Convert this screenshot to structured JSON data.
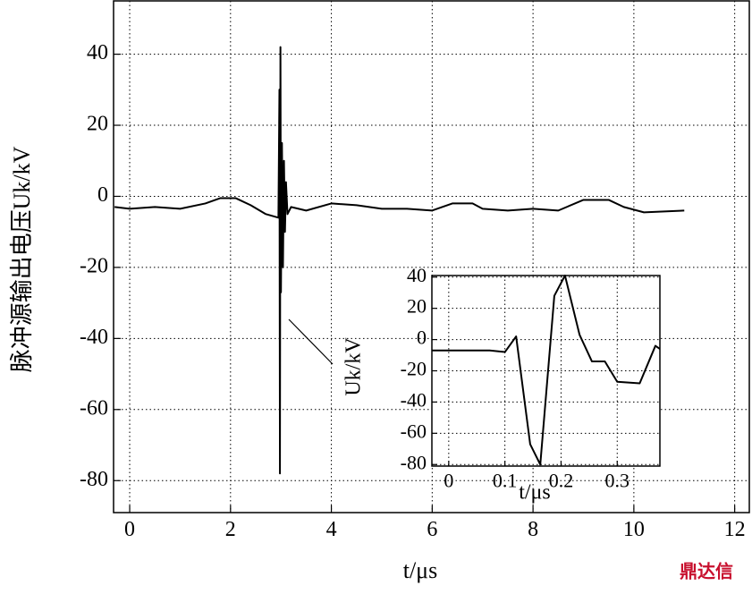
{
  "chart_data": [
    {
      "type": "line",
      "x_label": "t/μs",
      "y_label": "脉冲源输出电压Uk/kV",
      "x": [
        -0.3,
        0,
        0.5,
        1,
        1.5,
        1.8,
        2.1,
        2.4,
        2.7,
        2.95,
        2.97,
        2.98,
        2.99,
        3.0,
        3.02,
        3.04,
        3.06,
        3.08,
        3.1,
        3.13,
        3.2,
        3.5,
        4.0,
        4.5,
        5.0,
        5.5,
        6.0,
        6.4,
        6.8,
        7.0,
        7.5,
        8.0,
        8.5,
        9.0,
        9.5,
        9.8,
        10.2,
        11
      ],
      "series": [
        {
          "color": "#000000",
          "values": [
            -3,
            -3.5,
            -3,
            -3.5,
            -2,
            -0.5,
            -0.5,
            -2.5,
            -5,
            -6,
            30,
            -78,
            42,
            -27,
            15,
            -20,
            10,
            -10,
            4,
            -5,
            -3,
            -4,
            -2,
            -2.5,
            -3.5,
            -3.5,
            -4,
            -2,
            -2,
            -3.5,
            -4,
            -3.5,
            -4,
            -1,
            -1,
            -3,
            -4.5,
            -4
          ]
        }
      ],
      "xlim": [
        -0.32,
        12.29
      ],
      "ylim": [
        -89,
        55
      ],
      "xticks": [
        0,
        2,
        4,
        6,
        8,
        10,
        12
      ],
      "yticks": [
        -80,
        -60,
        -40,
        -20,
        0,
        20,
        40
      ],
      "grid": true
    },
    {
      "type": "line",
      "x_label": "t/μs",
      "y_label": "Uk/kV",
      "x": [
        -0.03,
        0.06,
        0.073,
        0.1,
        0.12,
        0.145,
        0.163,
        0.188,
        0.207,
        0.233,
        0.255,
        0.278,
        0.3,
        0.34,
        0.368,
        0.376
      ],
      "series": [
        {
          "color": "#000000",
          "values": [
            -7,
            -7,
            -7,
            -8,
            2,
            -67,
            -80,
            28,
            41,
            3,
            -14,
            -14,
            -27,
            -28,
            -4,
            -6
          ]
        }
      ],
      "xlim": [
        -0.03,
        0.376
      ],
      "ylim": [
        -81,
        41
      ],
      "xticks": [
        0,
        0.1,
        0.2,
        0.3
      ],
      "yticks": [
        -80,
        -60,
        -40,
        -20,
        0,
        20,
        40
      ],
      "grid": true
    }
  ],
  "watermark": "鼎达信"
}
